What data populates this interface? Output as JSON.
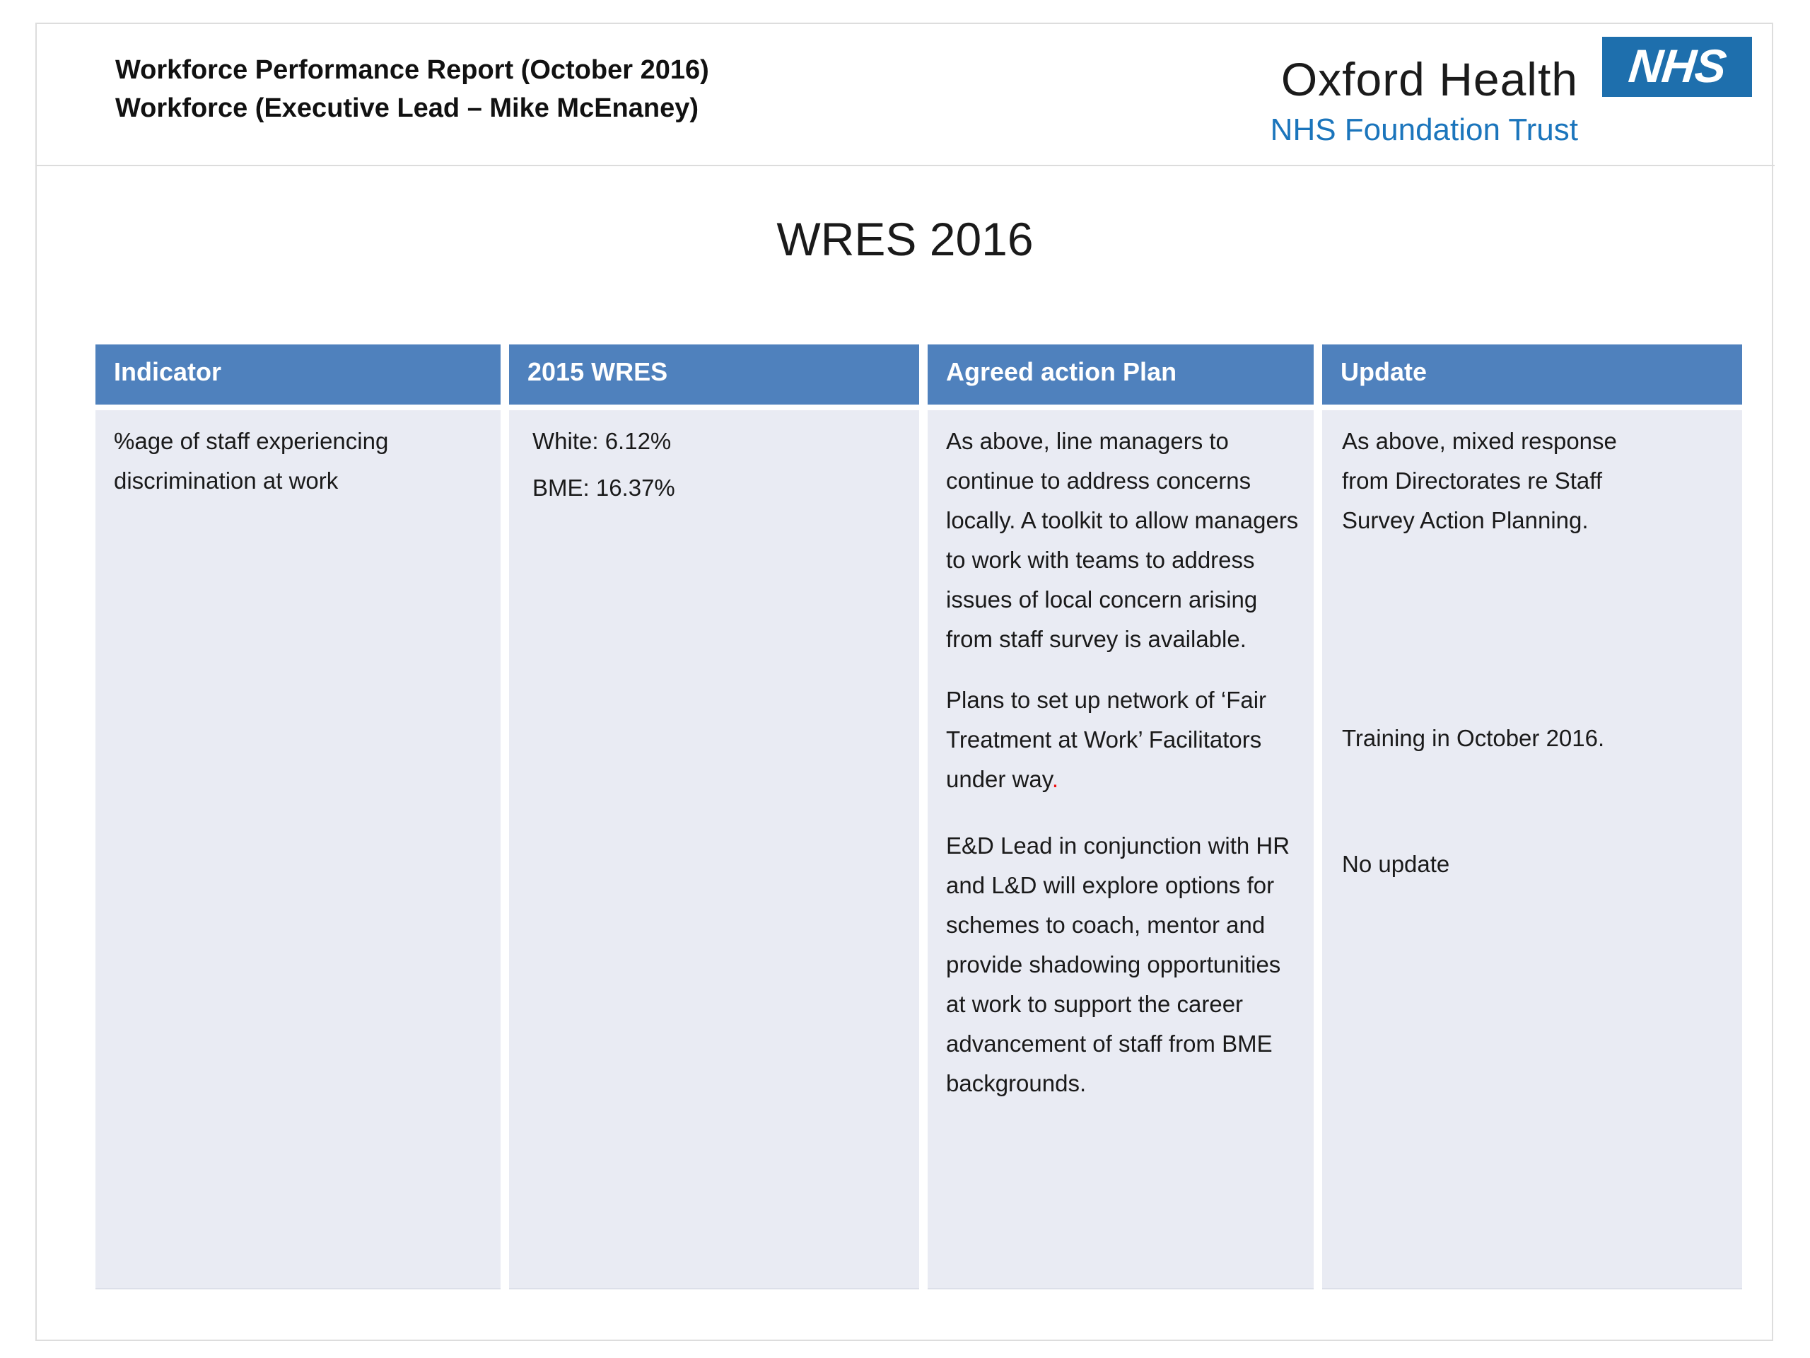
{
  "colors": {
    "table_header_bg": "#4f81bd",
    "table_body_bg": "#e9ebf3",
    "nhs_blue": "#1e6fad",
    "subtitle_blue": "#1b75bc",
    "red_accent": "#ee1111"
  },
  "header": {
    "report_title_line1": "Workforce Performance Report (October 2016)",
    "report_title_line2": "Workforce (Executive Lead – Mike McEnaney)",
    "org_name": "Oxford Health",
    "org_type": "NHS Foundation Trust",
    "nhs_logo": "NHS"
  },
  "section_title": "WRES 2016",
  "table": {
    "headers": [
      "Indicator",
      "2015 WRES",
      "Agreed action Plan",
      "Update"
    ],
    "row": {
      "indicator": "%age of staff experiencing discrimination at work",
      "wres_2015": {
        "white": "White: 6.12%",
        "bme": "BME: 16.37%"
      },
      "action_plan": [
        {
          "text": "As above, line managers to continue to address concerns locally. A toolkit to allow managers to work with teams to address issues of local concern arising from staff survey is available."
        },
        {
          "text": " Plans to set up network of ‘Fair Treatment at Work’ Facilitators under way",
          "red_suffix": "."
        },
        {
          "text": " E&D Lead in conjunction with HR and L&D will explore options for schemes to coach, mentor and provide shadowing opportunities at work to support the career advancement of staff from BME backgrounds."
        }
      ],
      "updates": [
        "As above, mixed response from Directorates re Staff Survey Action Planning.",
        "Training in October 2016.",
        "No update"
      ]
    }
  }
}
